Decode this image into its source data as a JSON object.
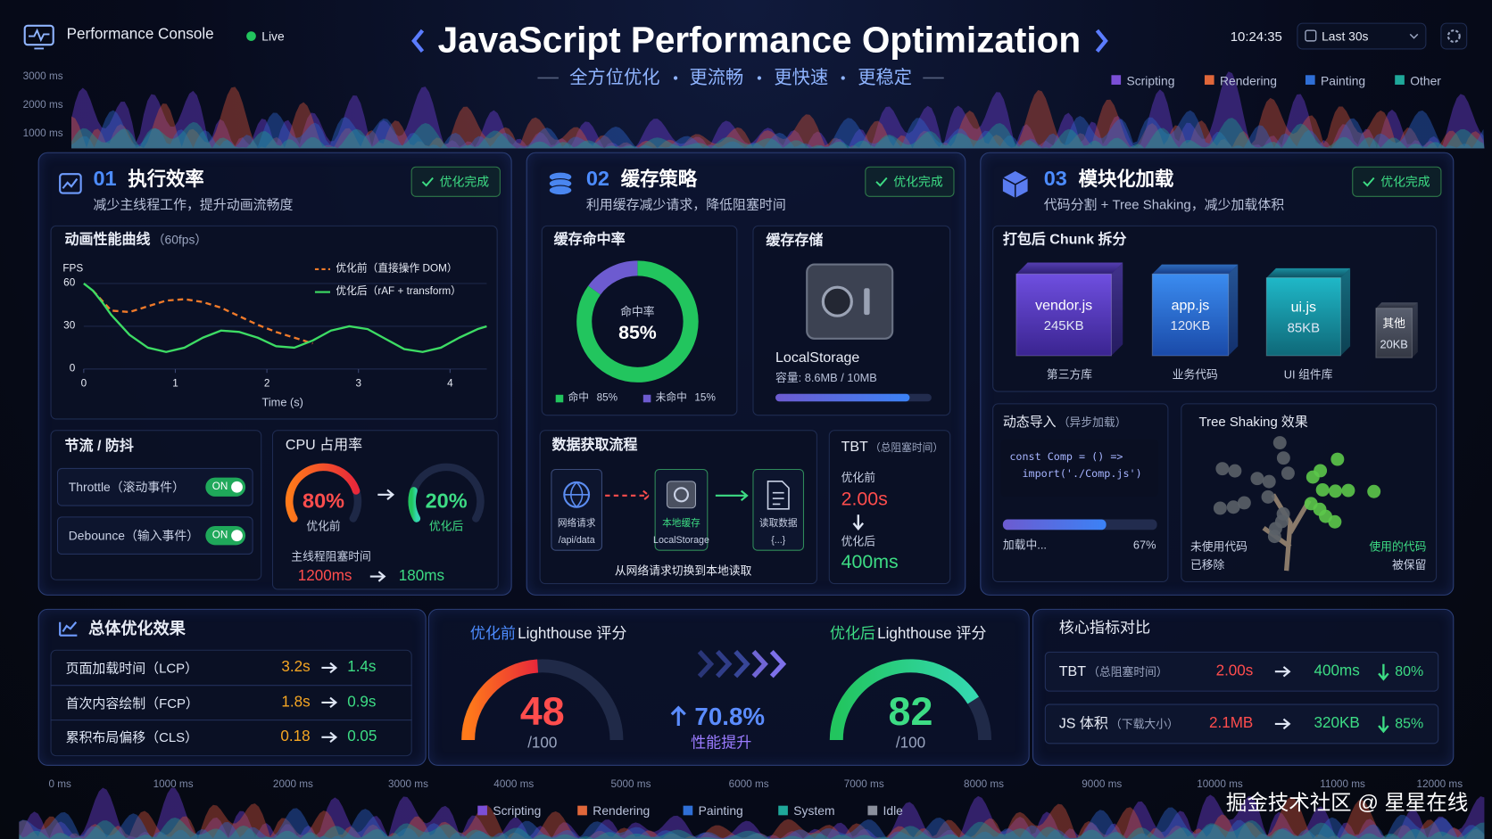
{
  "header": {
    "app_name": "Performance Console",
    "status": "Live",
    "title": "JavaScript Performance Optimization",
    "subtitle_parts": [
      "全方位优化",
      "更流畅",
      "更快速",
      "更稳定"
    ],
    "time": "10:24:35",
    "range": "Last 30s",
    "legend": [
      {
        "name": "Scripting",
        "color": "#7b4fd6"
      },
      {
        "name": "Rendering",
        "color": "#e0673a"
      },
      {
        "name": "Painting",
        "color": "#2f6fd6"
      },
      {
        "name": "Other",
        "color": "#1fa89a"
      }
    ]
  },
  "top_axis": {
    "labels": [
      "3000 ms",
      "2000 ms",
      "1000 ms"
    ]
  },
  "section1": {
    "number": "01",
    "title": "执行效率",
    "subtitle": "减少主线程工作，提升动画流畅度",
    "badge": "优化完成",
    "fps_chart": {
      "type": "line",
      "title": "动画性能曲线",
      "note": "（60fps）",
      "y_label": "FPS",
      "x_label": "Time (s)",
      "xlim": [
        0,
        4.4
      ],
      "ylim": [
        0,
        68
      ],
      "xticks": [
        0,
        1,
        2,
        3,
        4
      ],
      "yticks": [
        0,
        30,
        60
      ],
      "x": [
        0,
        0.1,
        0.2,
        0.3,
        0.5,
        0.7,
        0.9,
        1.1,
        1.3,
        1.5,
        1.7,
        1.9,
        2.1,
        2.3,
        2.5,
        2.7,
        2.9,
        3.1,
        3.3,
        3.5,
        3.7,
        3.9,
        4.1,
        4.3,
        4.4
      ],
      "series": [
        {
          "name": "优化前（直接操作 DOM）",
          "color": "#f07a2a",
          "dashed": true,
          "values": [
            null,
            55,
            48,
            41,
            40,
            44,
            48,
            49,
            47,
            43,
            37,
            31,
            26,
            22,
            18,
            null,
            null,
            null,
            null,
            null,
            null,
            null,
            null,
            null,
            null
          ]
        },
        {
          "name": "优化后（rAF + transform）",
          "color": "#3ddc64",
          "dashed": false,
          "values": [
            60,
            55,
            47,
            38,
            24,
            15,
            12,
            15,
            22,
            27,
            26,
            22,
            16,
            15,
            20,
            27,
            30,
            28,
            21,
            14,
            12,
            15,
            22,
            28,
            30
          ]
        }
      ]
    },
    "throttle": {
      "title": "节流 / 防抖",
      "items": [
        {
          "label": "Throttle（滚动事件）",
          "state": "ON"
        },
        {
          "label": "Debounce（输入事件）",
          "state": "ON"
        }
      ]
    },
    "cpu": {
      "title": "CPU 占用率",
      "before": {
        "value": 80,
        "label": "80%",
        "caption": "优化前"
      },
      "after": {
        "value": 20,
        "label": "20%",
        "caption": "优化后"
      },
      "block_title": "主线程阻塞时间",
      "block_before": "1200ms",
      "block_after": "180ms"
    }
  },
  "section2": {
    "number": "02",
    "title": "缓存策略",
    "subtitle": "利用缓存减少请求，降低阻塞时间",
    "badge": "优化完成",
    "hit_rate": {
      "title": "缓存命中率",
      "center_label": "命中率",
      "segments": [
        {
          "name": "命中",
          "value": 85,
          "value_label": "85%",
          "color": "#22c55e"
        },
        {
          "name": "未命中",
          "value": 15,
          "value_label": "15%",
          "color": "#6d5bd0"
        }
      ]
    },
    "storage": {
      "title": "缓存存储",
      "name": "LocalStorage",
      "capacity": "容量: 8.6MB / 10MB",
      "used": 8.6,
      "total": 10
    },
    "flow": {
      "title": "数据获取流程",
      "steps": [
        {
          "label": "网络请求",
          "sub": "/api/data"
        },
        {
          "label": "本地缓存",
          "sub": "LocalStorage"
        },
        {
          "label": "读取数据",
          "sub": "{...}"
        }
      ],
      "caption": "从网络请求切换到本地读取"
    },
    "tbt": {
      "title": "TBT",
      "note": "（总阻塞时间）",
      "before_label": "优化前",
      "before": "2.00s",
      "after_label": "优化后",
      "after": "400ms"
    }
  },
  "section3": {
    "number": "03",
    "title": "模块化加载",
    "subtitle": "代码分割 + Tree Shaking，减少加载体积",
    "badge": "优化完成",
    "chunks": {
      "title": "打包后 Chunk 拆分",
      "items": [
        {
          "name": "vendor.js",
          "size": "245KB",
          "caption": "第三方库"
        },
        {
          "name": "app.js",
          "size": "120KB",
          "caption": "业务代码"
        },
        {
          "name": "ui.js",
          "size": "85KB",
          "caption": "UI 组件库"
        },
        {
          "name": "其他",
          "size": "20KB"
        }
      ]
    },
    "dynamic": {
      "title": "动态导入",
      "note": "（异步加载）",
      "code": [
        "const Comp = () =>",
        "  import('./Comp.js')"
      ],
      "progress_label": "加载中...",
      "progress": 67,
      "progress_value_label": "67%"
    },
    "tree": {
      "title": "Tree Shaking 效果",
      "left": [
        "未使用代码",
        "已移除"
      ],
      "right": [
        "使用的代码",
        "被保留"
      ]
    }
  },
  "summary": {
    "title": "总体优化效果",
    "rows": [
      {
        "label": "页面加载时间（LCP）",
        "before": "3.2s",
        "after": "1.4s"
      },
      {
        "label": "首次内容绘制（FCP）",
        "before": "1.8s",
        "after": "0.9s"
      },
      {
        "label": "累积布局偏移（CLS）",
        "before": "0.18",
        "after": "0.05"
      }
    ]
  },
  "lighthouse": {
    "before": {
      "prefix": "优化前",
      "title": "Lighthouse 评分",
      "score": 48,
      "max": 100,
      "max_label": "/100"
    },
    "after": {
      "prefix": "优化后",
      "title": "Lighthouse 评分",
      "score": 82,
      "max": 100,
      "max_label": "/100"
    },
    "improvement": "70.8%",
    "improvement_caption": "性能提升"
  },
  "metrics": {
    "title": "核心指标对比",
    "rows": [
      {
        "label": "TBT",
        "note": "（总阻塞时间）",
        "before": "2.00s",
        "after": "400ms",
        "reduction": "80%"
      },
      {
        "label": "JS 体积",
        "note": "（下载大小）",
        "before": "2.1MB",
        "after": "320KB",
        "reduction": "85%"
      }
    ]
  },
  "bottom_axis": {
    "labels": [
      "0 ms",
      "1000 ms",
      "2000 ms",
      "3000 ms",
      "4000 ms",
      "5000 ms",
      "6000 ms",
      "7000 ms",
      "8000 ms",
      "9000 ms",
      "10000 ms",
      "11000 ms",
      "12000 ms"
    ],
    "legend": [
      {
        "name": "Scripting",
        "color": "#7b4fd6"
      },
      {
        "name": "Rendering",
        "color": "#e0673a"
      },
      {
        "name": "Painting",
        "color": "#2f6fd6"
      },
      {
        "name": "System",
        "color": "#1fa89a"
      },
      {
        "name": "Idle",
        "color": "#8a8f9c"
      }
    ]
  },
  "watermark": "掘金技术社区 @ 星星在线"
}
